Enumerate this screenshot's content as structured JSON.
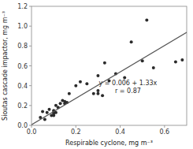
{
  "chart_data": {
    "type": "scatter",
    "xlabel": "Respirable cyclone, mg m⁻³",
    "ylabel": "Sioutas cascade impactor, mg m⁻³",
    "xlim": [
      0.0,
      0.7
    ],
    "ylim": [
      0.0,
      1.2
    ],
    "xticks": [
      {
        "value": 0,
        "label": "0.0"
      },
      0.2,
      0.4,
      0.6
    ],
    "yticks": [
      {
        "value": 0,
        "label": "0.0"
      },
      0.2,
      0.4,
      0.6,
      0.8,
      {
        "value": 1,
        "label": "1.0"
      },
      1.2
    ],
    "series": [
      {
        "type": "scatter",
        "color": "#2b2b2b",
        "x": [
          0.04,
          0.05,
          0.06,
          0.07,
          0.08,
          0.09,
          0.1,
          0.1,
          0.1,
          0.1,
          0.11,
          0.11,
          0.12,
          0.13,
          0.14,
          0.15,
          0.15,
          0.16,
          0.17,
          0.2,
          0.22,
          0.25,
          0.28,
          0.3,
          0.3,
          0.3,
          0.32,
          0.33,
          0.35,
          0.38,
          0.42,
          0.45,
          0.5,
          0.52,
          0.55,
          0.65,
          0.68
        ],
        "values": [
          0.08,
          0.14,
          0.06,
          0.13,
          0.16,
          0.1,
          0.1,
          0.13,
          0.12,
          0.15,
          0.13,
          0.2,
          0.18,
          0.22,
          0.25,
          0.22,
          0.24,
          0.23,
          0.32,
          0.4,
          0.44,
          0.42,
          0.32,
          0.32,
          0.35,
          0.5,
          0.3,
          0.63,
          0.45,
          0.52,
          0.48,
          0.84,
          0.65,
          1.06,
          0.58,
          0.64,
          0.66
        ]
      },
      {
        "type": "line",
        "color": "#555555",
        "x": [
          0.0,
          0.7
        ],
        "values": [
          0.006,
          0.937
        ]
      }
    ],
    "annotation": {
      "text": [
        "y = 0.006 + 1.33x",
        "r = 0.87"
      ],
      "x": 0.435,
      "y": 0.39
    }
  }
}
